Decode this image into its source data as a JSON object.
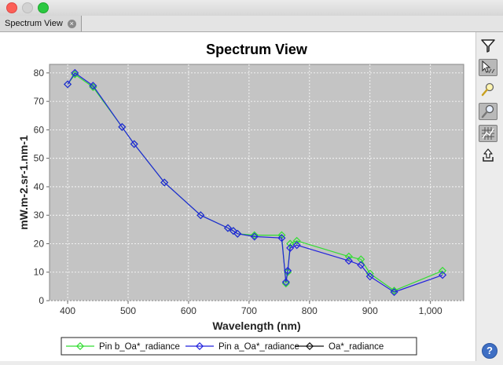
{
  "window": {
    "title": ""
  },
  "tab": {
    "label": "Spectrum View",
    "close_glyph": "×"
  },
  "toolbar": {
    "tools": [
      {
        "name": "filter-icon",
        "selected": false
      },
      {
        "name": "pointer-select-icon",
        "selected": true
      },
      {
        "name": "zoom-icon",
        "selected": false
      },
      {
        "name": "zoom-region-icon",
        "selected": true
      },
      {
        "name": "grid-icon",
        "selected": true
      },
      {
        "name": "export-icon",
        "selected": false
      }
    ],
    "help_label": "?"
  },
  "chart_data": {
    "type": "line",
    "title": "Spectrum View",
    "xlabel": "Wavelength (nm)",
    "ylabel": "mW.m-2.sr-1.nm-1",
    "xlim": [
      370,
      1055
    ],
    "ylim": [
      0,
      83
    ],
    "xticks": [
      400,
      500,
      600,
      700,
      800,
      900,
      1000
    ],
    "xtick_labels": [
      "400",
      "500",
      "600",
      "700",
      "800",
      "900",
      "1,000"
    ],
    "yticks": [
      0,
      10,
      20,
      30,
      40,
      50,
      60,
      70,
      80
    ],
    "grid": true,
    "legend_position": "bottom",
    "series": [
      {
        "name": "Pin b_Oa*_radiance",
        "color": "#33dd33",
        "x": [
          400,
          412,
          442,
          490,
          510,
          560,
          620,
          665,
          674,
          681,
          709,
          754,
          761,
          764,
          768,
          779,
          865,
          885,
          900,
          940,
          1020
        ],
        "y": [
          76,
          79.5,
          75,
          61,
          55,
          41.5,
          30,
          25.5,
          24.5,
          23.5,
          23,
          23,
          6,
          10,
          20,
          21,
          15.5,
          14.5,
          9.5,
          3.5,
          10.5
        ]
      },
      {
        "name": "Pin a_Oa*_radiance",
        "color": "#2222dd",
        "x": [
          400,
          412,
          442,
          490,
          510,
          560,
          620,
          665,
          674,
          681,
          709,
          754,
          761,
          764,
          768,
          779,
          865,
          885,
          900,
          940,
          1020
        ],
        "y": [
          76,
          80,
          75.5,
          61,
          55,
          41.5,
          30,
          25.5,
          24.5,
          23.5,
          22.5,
          22,
          6.5,
          10.5,
          18.5,
          19.5,
          14,
          12.5,
          8.5,
          3,
          9
        ]
      },
      {
        "name": "Oa*_radiance",
        "color": "#111111",
        "x": [],
        "y": []
      }
    ]
  }
}
